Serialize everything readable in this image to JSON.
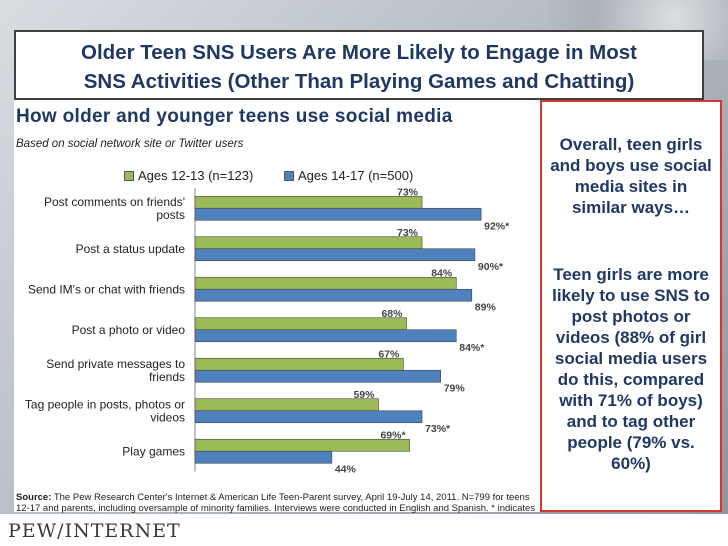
{
  "slide": {
    "title_line1": "Older Teen SNS Users Are More Likely to Engage in Most",
    "title_line2": "SNS Activities (Other Than Playing Games and Chatting)",
    "subtitle": "How older and younger teens use social media",
    "caption": "Based on social network site or Twitter users",
    "source_label": "Source:",
    "source_text": " The Pew Research Center's Internet & American Life Teen-Parent survey, April 19-July 14, 2011. N=799 for teens 12-17 and parents, including oversample of minority families. Interviews were conducted in English and Spanish. * indicates statistically significant difference between groups.",
    "logo": "PEW/INTERNET"
  },
  "side_panel": {
    "para1": "Overall, teen girls and boys use social media sites in similar ways…",
    "para2": "Teen girls are more likely to use SNS to post photos or videos (88% of girl social media users do this, compared with 71% of boys) and to tag other people (79% vs. 60%)"
  },
  "colors": {
    "series1": "#9bbb59",
    "series2": "#4f81bd",
    "title": "#1f3864",
    "side_border": "#d0392b"
  },
  "chart_data": {
    "type": "bar",
    "orientation": "horizontal",
    "title": "How older and younger teens use social media",
    "xlabel": "",
    "ylabel": "",
    "xlim": [
      0,
      100
    ],
    "ticks": [
      "0%",
      "20%",
      "40%",
      "60%",
      "80%",
      "100%"
    ],
    "tick_values": [
      0,
      20,
      40,
      60,
      80,
      100
    ],
    "legend_position": "top",
    "categories": [
      [
        "Post comments on friends'",
        "posts"
      ],
      [
        "Post a status update"
      ],
      [
        "Send IM's or chat with friends"
      ],
      [
        "Post a photo or video"
      ],
      [
        "Send private messages to",
        "friends"
      ],
      [
        "Tag people in posts, photos or",
        "videos"
      ],
      [
        "Play games"
      ]
    ],
    "series": [
      {
        "name": "Ages 12-13 (n=123)",
        "values": [
          73,
          73,
          84,
          68,
          67,
          59,
          69
        ],
        "labels": [
          "73%",
          "73%",
          "84%",
          "68%",
          "67%",
          "59%",
          "69%*"
        ]
      },
      {
        "name": "Ages 14-17 (n=500)",
        "values": [
          92,
          90,
          89,
          84,
          79,
          73,
          44
        ],
        "labels": [
          "92%*",
          "90%*",
          "89%",
          "84%*",
          "79%",
          "73%*",
          "44%"
        ]
      }
    ]
  }
}
